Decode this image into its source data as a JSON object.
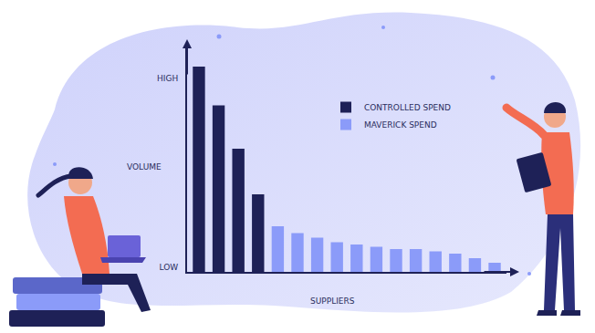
{
  "chart_data": {
    "type": "bar",
    "categories": [
      null,
      null,
      null,
      null,
      null,
      null,
      null,
      null,
      null,
      null,
      null,
      null,
      null,
      null,
      null,
      null
    ],
    "series": [
      {
        "name": "CONTROLLED SPEND",
        "color": "#1e2157",
        "values": [
          90,
          73,
          54,
          34,
          null,
          null,
          null,
          null,
          null,
          null,
          null,
          null,
          null,
          null,
          null,
          null
        ]
      },
      {
        "name": "MAVERICK SPEND",
        "color": "#8b9bf9",
        "values": [
          null,
          null,
          null,
          null,
          20,
          17,
          15,
          13,
          12,
          11,
          10,
          10,
          9,
          8,
          6,
          4
        ]
      }
    ],
    "x_label": "SUPPLIERS",
    "y_label": "VOLUME",
    "ylim": [
      0,
      100
    ],
    "yticks": [
      {
        "value": 2,
        "label": "LOW"
      },
      {
        "value": 85,
        "label": "HIGH"
      }
    ],
    "tick_labels": "y",
    "grid": false,
    "legend": "upper right"
  }
}
